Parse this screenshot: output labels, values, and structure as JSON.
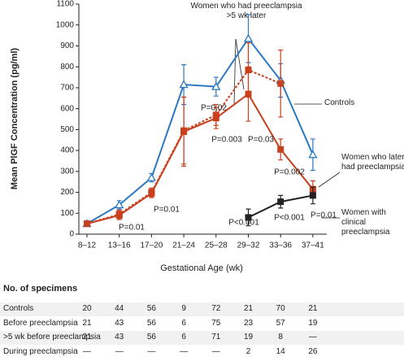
{
  "chart_data": {
    "type": "line",
    "y_label": "Mean PlGF Concentration (pg/ml)",
    "x_label": "Gestational Age (wk)",
    "categories": [
      "8–12",
      "13–16",
      "17–20",
      "21–24",
      "25–28",
      "29–32",
      "33–36",
      "37–41"
    ],
    "ylim": [
      0,
      1100
    ],
    "yticks": [
      0,
      100,
      200,
      300,
      400,
      500,
      600,
      700,
      800,
      900,
      1000,
      1100
    ],
    "series": [
      {
        "name": "Controls",
        "color": "#2b78c2",
        "marker": "triangle",
        "dash": false,
        "values": [
          50,
          140,
          270,
          715,
          705,
          935,
          735,
          380
        ],
        "errors": [
          10,
          20,
          20,
          95,
          45,
          115,
          80,
          75
        ]
      },
      {
        "name": "Women who later had preeclampsia",
        "color": "#c8401e",
        "marker": "square",
        "dash": false,
        "values": [
          50,
          90,
          195,
          490,
          555,
          670,
          405,
          215
        ],
        "errors": [
          10,
          20,
          20,
          165,
          50,
          130,
          50,
          40
        ]
      },
      {
        "name": "Women who had preeclampsia >5 wk later",
        "color": "#c8401e",
        "marker": "square",
        "dash": true,
        "values": [
          50,
          95,
          200,
          495,
          570,
          785,
          720,
          null
        ],
        "errors": [
          10,
          20,
          20,
          160,
          50,
          130,
          160,
          null
        ]
      },
      {
        "name": "Women with clinical preeclampsia",
        "color": "#222222",
        "marker": "square",
        "dash": false,
        "values": [
          null,
          null,
          null,
          null,
          null,
          80,
          155,
          185
        ],
        "errors": [
          null,
          null,
          null,
          null,
          null,
          40,
          30,
          40
        ]
      }
    ],
    "annotations": [
      "P=0.01",
      "P=0.01",
      "P=0.02",
      "P=0.003",
      "P=0.03",
      "P=0.002",
      "P<0.001",
      "P<0.001",
      "P=0.01"
    ]
  },
  "table": {
    "title": "No. of specimens",
    "rows": [
      [
        "Controls",
        "20",
        "44",
        "56",
        "9",
        "72",
        "21",
        "70",
        "21"
      ],
      [
        "Before preeclampsia",
        "21",
        "43",
        "56",
        "6",
        "75",
        "23",
        "57",
        "19"
      ],
      [
        ">5 wk before preeclampsia",
        "21",
        "43",
        "56",
        "6",
        "71",
        "19",
        "8",
        "—"
      ],
      [
        "During preeclampsia",
        "—",
        "—",
        "—",
        "—",
        "—",
        "2",
        "14",
        "26"
      ]
    ]
  }
}
